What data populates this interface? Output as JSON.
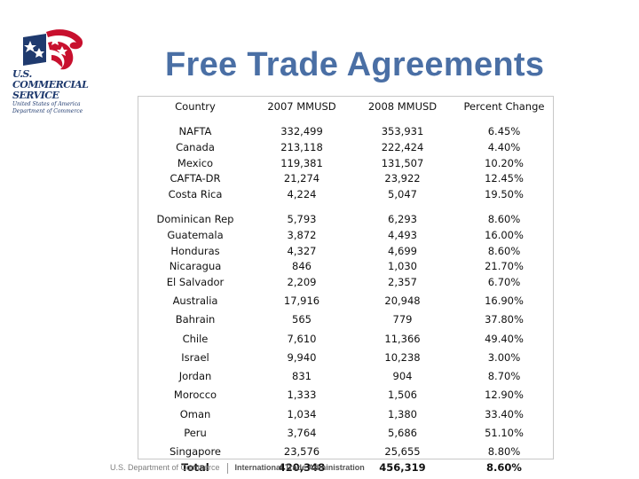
{
  "logo": {
    "line1": "U.S.",
    "line2": "COMMERCIAL",
    "line3": "SERVICE",
    "line4": "United States of America",
    "line5": "Department of Commerce",
    "colors": {
      "blue": "#1f3a6e",
      "red": "#c8102e"
    }
  },
  "title": "Free Trade Agreements",
  "table": {
    "headers": [
      "Country",
      "2007 MMUSD",
      "2008 MMUSD",
      "Percent Change"
    ],
    "group1": {
      "countries": [
        "NAFTA",
        "Canada",
        "Mexico",
        "CAFTA-DR",
        "Costa Rica"
      ],
      "y2007": [
        "332,499",
        "213,118",
        "119,381",
        "21,274",
        "4,224"
      ],
      "y2008": [
        "353,931",
        "222,424",
        "131,507",
        "23,922",
        "5,047"
      ],
      "pct": [
        "6.45%",
        "4.40%",
        "10.20%",
        "12.45%",
        "19.50%"
      ]
    },
    "group2": {
      "countries": [
        "Dominican Rep",
        "Guatemala",
        "Honduras",
        "Nicaragua",
        "El Salvador"
      ],
      "y2007": [
        "5,793",
        "3,872",
        "4,327",
        "846",
        "2,209"
      ],
      "y2008": [
        "6,293",
        "4,493",
        "4,699",
        "1,030",
        "2,357"
      ],
      "pct": [
        "8.60%",
        "16.00%",
        "8.60%",
        "21.70%",
        "6.70%"
      ]
    },
    "rows": [
      {
        "country": "Australia",
        "y2007": "17,916",
        "y2008": "20,948",
        "pct": "16.90%"
      },
      {
        "country": "Bahrain",
        "y2007": "565",
        "y2008": "779",
        "pct": "37.80%"
      },
      {
        "country": "Chile",
        "y2007": "7,610",
        "y2008": "11,366",
        "pct": "49.40%"
      },
      {
        "country": "Israel",
        "y2007": "9,940",
        "y2008": "10,238",
        "pct": "3.00%"
      },
      {
        "country": "Jordan",
        "y2007": "831",
        "y2008": "904",
        "pct": "8.70%"
      },
      {
        "country": "Morocco",
        "y2007": "1,333",
        "y2008": "1,506",
        "pct": "12.90%"
      },
      {
        "country": "Oman",
        "y2007": "1,034",
        "y2008": "1,380",
        "pct": "33.40%"
      },
      {
        "country": "Peru",
        "y2007": "3,764",
        "y2008": "5,686",
        "pct": "51.10%"
      },
      {
        "country": "Singapore",
        "y2007": "23,576",
        "y2008": "25,655",
        "pct": "8.80%"
      }
    ],
    "total": {
      "label": "Total",
      "y2007": "420,348",
      "y2008": "456,319",
      "pct": "8.60%"
    }
  },
  "footer": {
    "department": "U.S. Department of Commerce",
    "agency": "International Trade Administration"
  }
}
